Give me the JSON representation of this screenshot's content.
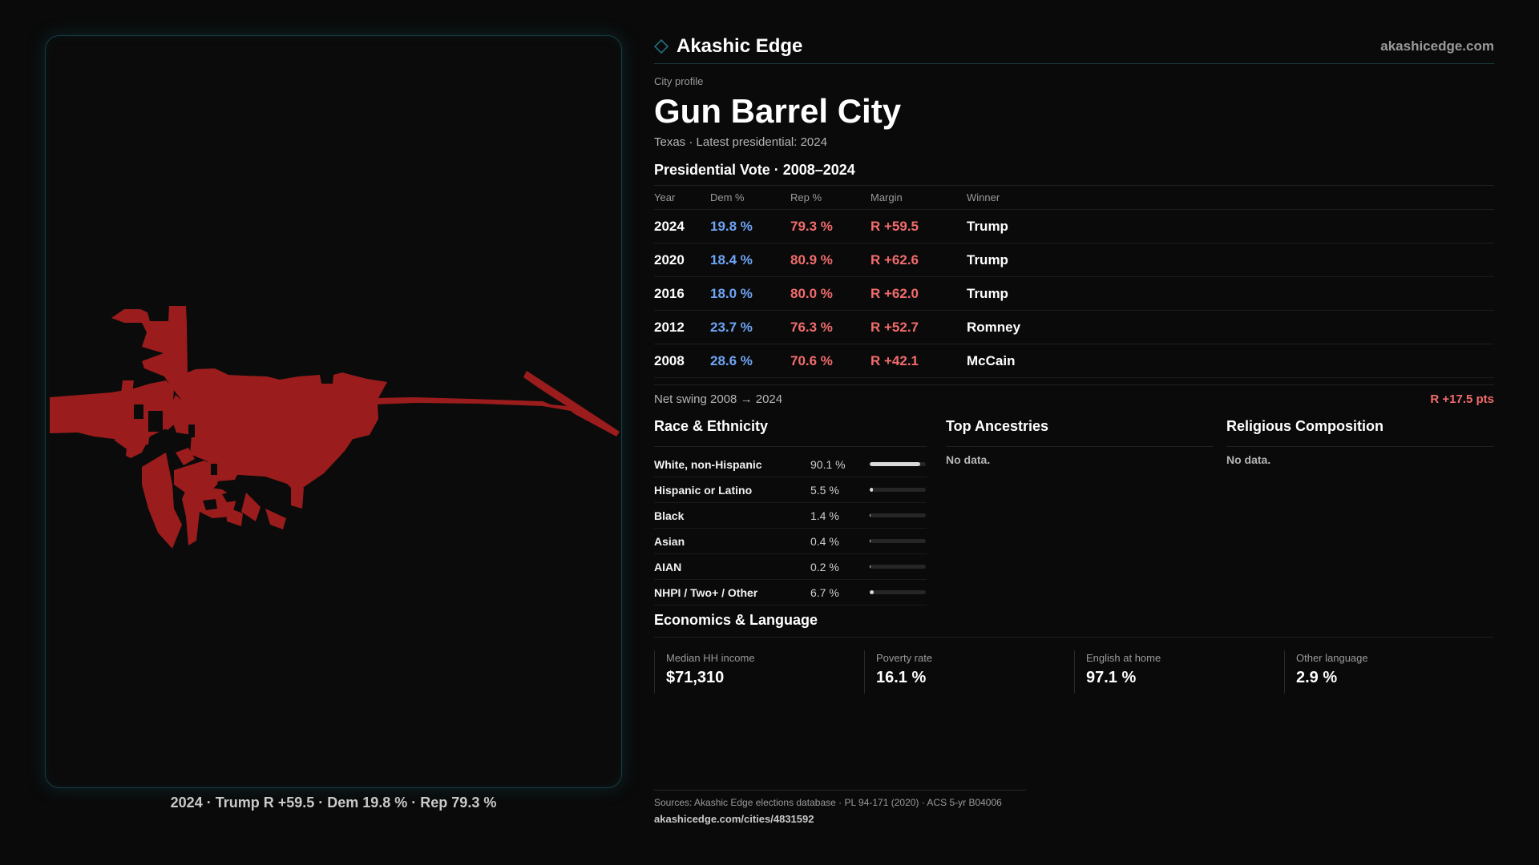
{
  "brand": {
    "name": "Akashic Edge",
    "url": "akashicedge.com",
    "logo_icon": "diamond-icon",
    "accent": "#1f6f7a"
  },
  "map": {
    "fill_color": "#9b1c1c",
    "caption": "2024 · Trump R +59.5 · Dem 19.8 % · Rep 79.3 %"
  },
  "profile": {
    "eyebrow": "City profile",
    "city": "Gun Barrel City",
    "subline": "Texas · Latest presidential: 2024"
  },
  "votes": {
    "title": "Presidential Vote · 2008–2024",
    "headers": {
      "year": "Year",
      "dem": "Dem %",
      "rep": "Rep %",
      "margin": "Margin",
      "winner": "Winner"
    },
    "rows": [
      {
        "year": "2024",
        "dem": "19.8 %",
        "rep": "79.3 %",
        "margin": "R +59.5",
        "winner": "Trump"
      },
      {
        "year": "2020",
        "dem": "18.4 %",
        "rep": "80.9 %",
        "margin": "R +62.6",
        "winner": "Trump"
      },
      {
        "year": "2016",
        "dem": "18.0 %",
        "rep": "80.0 %",
        "margin": "R +62.0",
        "winner": "Trump"
      },
      {
        "year": "2012",
        "dem": "23.7 %",
        "rep": "76.3 %",
        "margin": "R +52.7",
        "winner": "Romney"
      },
      {
        "year": "2008",
        "dem": "28.6 %",
        "rep": "70.6 %",
        "margin": "R +42.1",
        "winner": "McCain"
      }
    ],
    "swing_label": "Net swing 2008 → 2024",
    "swing_value": "R +17.5 pts",
    "dem_color": "#6ea5f5",
    "rep_color": "#f26c6c"
  },
  "race": {
    "title": "Race & Ethnicity",
    "rows": [
      {
        "label": "White, non-Hispanic",
        "pct": "90.1 %",
        "share": 0.901
      },
      {
        "label": "Hispanic or Latino",
        "pct": "5.5 %",
        "share": 0.055
      },
      {
        "label": "Black",
        "pct": "1.4 %",
        "share": 0.014
      },
      {
        "label": "Asian",
        "pct": "0.4 %",
        "share": 0.004
      },
      {
        "label": "AIAN",
        "pct": "0.2 %",
        "share": 0.002
      },
      {
        "label": "NHPI / Two+ / Other",
        "pct": "6.7 %",
        "share": 0.067
      }
    ]
  },
  "ancestries": {
    "title": "Top Ancestries",
    "empty": "No data."
  },
  "religion": {
    "title": "Religious Composition",
    "empty": "No data."
  },
  "econ": {
    "title": "Economics & Language",
    "stats": [
      {
        "label": "Median HH income",
        "value": "$71,310"
      },
      {
        "label": "Poverty rate",
        "value": "16.1 %"
      },
      {
        "label": "English at home",
        "value": "97.1 %"
      },
      {
        "label": "Other language",
        "value": "2.9 %"
      }
    ]
  },
  "footer": {
    "sources": "Sources: Akashic Edge elections database · PL 94-171 (2020) · ACS 5-yr B04006",
    "link": "akashicedge.com/cities/4831592"
  }
}
